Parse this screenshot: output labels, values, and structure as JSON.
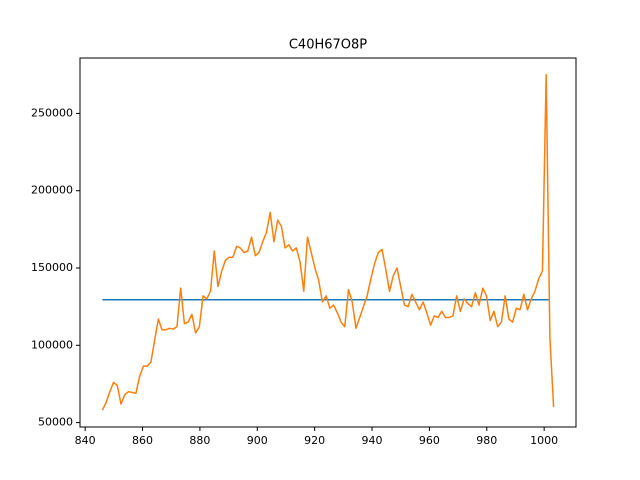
{
  "chart_data": {
    "type": "line",
    "title": "C40H67O8P",
    "xlim": [
      838.2,
      1011.1
    ],
    "ylim": [
      47150,
      285850
    ],
    "xticks": [
      840,
      860,
      880,
      900,
      920,
      940,
      960,
      980,
      1000
    ],
    "yticks": [
      50000,
      100000,
      150000,
      200000,
      250000
    ],
    "series": [
      {
        "color": "#1f77b4",
        "x": [
          846,
          1002
        ],
        "values": [
          129500,
          129500
        ]
      },
      {
        "color": "#ff7f0e",
        "x": [
          846.0,
          847.3,
          848.6,
          849.9,
          851.2,
          852.5,
          853.8,
          855.1,
          856.4,
          857.7,
          859.0,
          860.3,
          861.6,
          862.9,
          864.2,
          865.5,
          866.8,
          868.1,
          869.4,
          870.7,
          872.0,
          873.3,
          874.6,
          875.9,
          877.2,
          878.5,
          879.8,
          881.1,
          882.4,
          883.7,
          885.0,
          886.3,
          887.6,
          888.9,
          890.2,
          891.5,
          892.8,
          894.1,
          895.4,
          896.7,
          898.0,
          899.3,
          900.6,
          901.9,
          903.2,
          904.5,
          905.8,
          907.1,
          908.4,
          909.7,
          911.0,
          912.3,
          913.6,
          914.9,
          916.2,
          917.5,
          918.8,
          920.1,
          921.4,
          922.7,
          924.0,
          925.3,
          926.6,
          927.9,
          929.2,
          930.5,
          931.8,
          933.1,
          934.4,
          935.7,
          937.0,
          938.3,
          939.6,
          940.9,
          942.2,
          943.5,
          944.8,
          946.1,
          947.4,
          948.7,
          950.0,
          951.3,
          952.6,
          953.9,
          955.2,
          956.5,
          957.8,
          959.1,
          960.4,
          961.7,
          963.0,
          964.3,
          965.6,
          966.9,
          968.2,
          969.5,
          970.8,
          972.1,
          973.4,
          974.7,
          976.0,
          977.3,
          978.6,
          979.9,
          981.2,
          982.5,
          983.8,
          985.1,
          986.4,
          987.7,
          989.0,
          990.3,
          991.6,
          992.9,
          994.2,
          995.5,
          996.8,
          998.1,
          999.4,
          1000.7,
          1002.0,
          1003.3
        ],
        "values": [
          58000,
          63000,
          70000,
          76000,
          74000,
          62000,
          68000,
          70000,
          69500,
          69000,
          80000,
          86500,
          86500,
          89000,
          103000,
          117000,
          110000,
          110000,
          111000,
          110500,
          112000,
          137000,
          114000,
          115000,
          120000,
          108000,
          112000,
          132000,
          130000,
          135000,
          161000,
          138000,
          148000,
          155000,
          157000,
          157000,
          164000,
          163000,
          160000,
          161000,
          170000,
          158000,
          160000,
          167000,
          173000,
          186000,
          167000,
          181000,
          177000,
          163000,
          165000,
          161000,
          163000,
          154000,
          135000,
          170000,
          160000,
          150000,
          142000,
          128000,
          132000,
          124000,
          126000,
          121000,
          115000,
          112000,
          136000,
          128000,
          111000,
          118000,
          125000,
          132000,
          143000,
          153000,
          160000,
          162000,
          149000,
          135000,
          145000,
          150000,
          138000,
          126000,
          125000,
          133000,
          128000,
          123000,
          128000,
          121000,
          113000,
          119000,
          118000,
          122000,
          118000,
          118000,
          119000,
          132000,
          122000,
          130000,
          127000,
          125000,
          134000,
          126000,
          137000,
          132000,
          116000,
          122000,
          112000,
          115000,
          132000,
          117000,
          115000,
          124000,
          123000,
          133000,
          123000,
          130000,
          135000,
          143000,
          148000,
          275000,
          105000,
          60000
        ]
      }
    ]
  }
}
